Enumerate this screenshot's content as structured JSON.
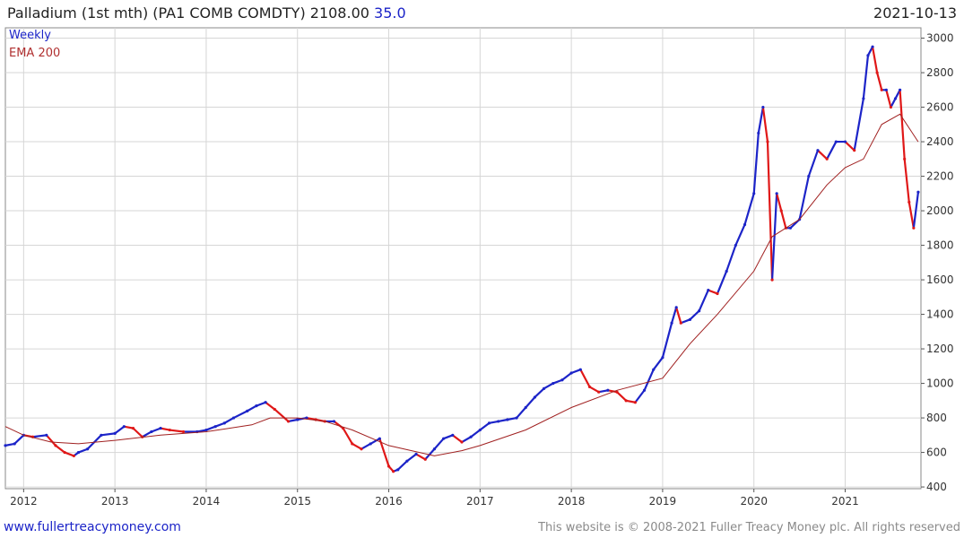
{
  "header": {
    "title": "Palladium (1st mth)  (PA1 COMB COMDTY) 2108.00",
    "change": "35.0",
    "date": "2021-10-13"
  },
  "footer": {
    "link": "www.fullertreacymoney.com",
    "copyright": "This website is © 2008-2021 Fuller Treacy Money plc. All rights reserved"
  },
  "colors": {
    "up": "#1c24c8",
    "down": "#e01818",
    "ema": "#a02020",
    "grid": "#d6d6d6"
  },
  "chart_data": {
    "type": "line",
    "legend": [
      "Weekly",
      "EMA 200"
    ],
    "legend_position": "top-left",
    "grid": true,
    "x_ticks": [
      "2012",
      "2013",
      "2014",
      "2015",
      "2016",
      "2017",
      "2018",
      "2019",
      "2020",
      "2021"
    ],
    "y_ticks": [
      400,
      600,
      800,
      1000,
      1200,
      1400,
      1600,
      1800,
      2000,
      2200,
      2400,
      2600,
      2800,
      3000
    ],
    "xlim": [
      2011.8,
      2021.83
    ],
    "ylim": [
      390,
      3060
    ],
    "series": [
      {
        "name": "Weekly",
        "x": [
          2011.8,
          2011.9,
          2012.0,
          2012.1,
          2012.25,
          2012.35,
          2012.45,
          2012.55,
          2012.6,
          2012.7,
          2012.85,
          2013.0,
          2013.1,
          2013.2,
          2013.3,
          2013.4,
          2013.5,
          2013.6,
          2013.75,
          2013.9,
          2014.0,
          2014.1,
          2014.2,
          2014.3,
          2014.45,
          2014.55,
          2014.65,
          2014.75,
          2014.9,
          2015.0,
          2015.1,
          2015.2,
          2015.3,
          2015.4,
          2015.5,
          2015.6,
          2015.7,
          2015.8,
          2015.9,
          2016.0,
          2016.05,
          2016.1,
          2016.2,
          2016.3,
          2016.4,
          2016.5,
          2016.6,
          2016.7,
          2016.8,
          2016.9,
          2017.0,
          2017.1,
          2017.2,
          2017.3,
          2017.4,
          2017.5,
          2017.6,
          2017.7,
          2017.8,
          2017.9,
          2018.0,
          2018.1,
          2018.2,
          2018.3,
          2018.4,
          2018.5,
          2018.6,
          2018.7,
          2018.8,
          2018.9,
          2019.0,
          2019.1,
          2019.15,
          2019.2,
          2019.3,
          2019.4,
          2019.5,
          2019.6,
          2019.7,
          2019.8,
          2019.9,
          2020.0,
          2020.05,
          2020.1,
          2020.15,
          2020.2,
          2020.25,
          2020.3,
          2020.35,
          2020.4,
          2020.5,
          2020.6,
          2020.7,
          2020.8,
          2020.9,
          2021.0,
          2021.1,
          2021.2,
          2021.25,
          2021.3,
          2021.35,
          2021.4,
          2021.45,
          2021.5,
          2021.55,
          2021.6,
          2021.65,
          2021.7,
          2021.75,
          2021.8
        ],
        "y": [
          640,
          650,
          700,
          690,
          700,
          640,
          600,
          580,
          600,
          620,
          700,
          710,
          750,
          740,
          690,
          720,
          740,
          730,
          720,
          720,
          730,
          750,
          770,
          800,
          840,
          870,
          890,
          850,
          780,
          790,
          800,
          790,
          780,
          780,
          740,
          650,
          620,
          650,
          680,
          520,
          490,
          500,
          550,
          590,
          560,
          620,
          680,
          700,
          660,
          690,
          730,
          770,
          780,
          790,
          800,
          860,
          920,
          970,
          1000,
          1020,
          1060,
          1080,
          980,
          950,
          960,
          950,
          900,
          890,
          960,
          1080,
          1150,
          1350,
          1440,
          1350,
          1370,
          1420,
          1540,
          1520,
          1650,
          1800,
          1920,
          2100,
          2450,
          2600,
          2400,
          1600,
          2100,
          2000,
          1900,
          1900,
          1950,
          2200,
          2350,
          2300,
          2400,
          2400,
          2350,
          2650,
          2900,
          2950,
          2800,
          2700,
          2700,
          2600,
          2650,
          2700,
          2300,
          2050,
          1900,
          2108
        ]
      },
      {
        "name": "EMA 200",
        "x": [
          2011.8,
          2012.0,
          2012.3,
          2012.6,
          2013.0,
          2013.5,
          2014.0,
          2014.5,
          2014.7,
          2015.0,
          2015.3,
          2015.6,
          2016.0,
          2016.5,
          2016.8,
          2017.0,
          2017.5,
          2018.0,
          2018.5,
          2019.0,
          2019.3,
          2019.6,
          2020.0,
          2020.2,
          2020.5,
          2020.8,
          2021.0,
          2021.2,
          2021.4,
          2021.6,
          2021.8
        ],
        "y": [
          750,
          700,
          660,
          650,
          670,
          700,
          720,
          760,
          800,
          800,
          780,
          730,
          640,
          580,
          610,
          640,
          730,
          860,
          960,
          1030,
          1230,
          1400,
          1650,
          1850,
          1950,
          2150,
          2250,
          2300,
          2500,
          2560,
          2400
        ]
      }
    ]
  }
}
